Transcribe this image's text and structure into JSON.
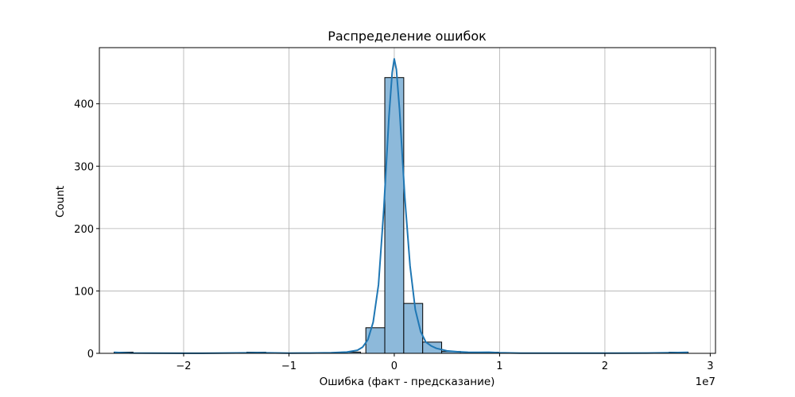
{
  "chart_data": {
    "type": "histogram",
    "title": "Распределение ошибок",
    "xlabel": "Ошибка (факт - предсказание)",
    "ylabel": "Count",
    "x_offset_label": "1e7",
    "xlim": [
      -2.8,
      3.05
    ],
    "ylim": [
      0,
      490
    ],
    "xticks": [
      -2,
      -1,
      0,
      1,
      2,
      3
    ],
    "xtick_labels": [
      "−2",
      "−1",
      "0",
      "1",
      "2",
      "3"
    ],
    "yticks": [
      0,
      100,
      200,
      300,
      400
    ],
    "ytick_labels": [
      "0",
      "100",
      "200",
      "300",
      "400"
    ],
    "grid": true,
    "bars": [
      {
        "x0": -2.66,
        "x1": -2.48,
        "count": 1
      },
      {
        "x0": -2.48,
        "x1": -2.3,
        "count": 0
      },
      {
        "x0": -2.3,
        "x1": -2.12,
        "count": 0
      },
      {
        "x0": -2.12,
        "x1": -1.94,
        "count": 0
      },
      {
        "x0": -1.94,
        "x1": -1.76,
        "count": 0
      },
      {
        "x0": -1.76,
        "x1": -1.58,
        "count": 0
      },
      {
        "x0": -1.58,
        "x1": -1.4,
        "count": 0
      },
      {
        "x0": -1.4,
        "x1": -1.22,
        "count": 1
      },
      {
        "x0": -1.22,
        "x1": -1.04,
        "count": 0
      },
      {
        "x0": -1.04,
        "x1": -0.86,
        "count": 0
      },
      {
        "x0": -0.86,
        "x1": -0.68,
        "count": 0
      },
      {
        "x0": -0.68,
        "x1": -0.5,
        "count": 0
      },
      {
        "x0": -0.5,
        "x1": -0.32,
        "count": 2
      },
      {
        "x0": -0.27,
        "x1": -0.09,
        "count": 41
      },
      {
        "x0": -0.09,
        "x1": 0.09,
        "count": 442
      },
      {
        "x0": 0.09,
        "x1": 0.27,
        "count": 80
      },
      {
        "x0": 0.27,
        "x1": 0.45,
        "count": 18
      },
      {
        "x0": 0.45,
        "x1": 0.63,
        "count": 3
      },
      {
        "x0": 0.63,
        "x1": 0.81,
        "count": 1
      },
      {
        "x0": 0.81,
        "x1": 0.99,
        "count": 1
      },
      {
        "x0": 0.99,
        "x1": 1.17,
        "count": 0
      },
      {
        "x0": 1.17,
        "x1": 1.35,
        "count": 0
      },
      {
        "x0": 1.35,
        "x1": 1.53,
        "count": 0
      },
      {
        "x0": 1.53,
        "x1": 1.71,
        "count": 0
      },
      {
        "x0": 1.71,
        "x1": 1.89,
        "count": 0
      },
      {
        "x0": 1.89,
        "x1": 2.07,
        "count": 0
      },
      {
        "x0": 2.07,
        "x1": 2.25,
        "count": 0
      },
      {
        "x0": 2.25,
        "x1": 2.43,
        "count": 0
      },
      {
        "x0": 2.43,
        "x1": 2.61,
        "count": 0
      },
      {
        "x0": 2.61,
        "x1": 2.79,
        "count": 1
      }
    ],
    "kde": {
      "x": [
        -2.66,
        -2.5,
        -2.3,
        -2.0,
        -1.7,
        -1.4,
        -1.3,
        -1.2,
        -1.0,
        -0.8,
        -0.6,
        -0.45,
        -0.35,
        -0.3,
        -0.25,
        -0.2,
        -0.15,
        -0.1,
        -0.05,
        -0.02,
        0.0,
        0.02,
        0.05,
        0.1,
        0.15,
        0.2,
        0.25,
        0.3,
        0.35,
        0.4,
        0.5,
        0.6,
        0.7,
        0.8,
        0.9,
        1.0,
        1.2,
        1.5,
        1.8,
        2.1,
        2.4,
        2.6,
        2.79
      ],
      "y": [
        1.5,
        0.5,
        0.2,
        0.1,
        0.2,
        0.8,
        1.2,
        0.8,
        0.3,
        0.5,
        1.0,
        2.0,
        5,
        10,
        22,
        50,
        110,
        230,
        380,
        450,
        472,
        455,
        390,
        250,
        140,
        70,
        35,
        18,
        12,
        8,
        4,
        2.5,
        1.8,
        1.5,
        1.8,
        1.0,
        0.4,
        0.2,
        0.2,
        0.3,
        0.5,
        0.9,
        1.5
      ]
    },
    "colors": {
      "bar_fill": "#8db9da",
      "bar_edge": "#000000",
      "kde_line": "#1f77b4",
      "grid": "#b0b0b0"
    }
  }
}
